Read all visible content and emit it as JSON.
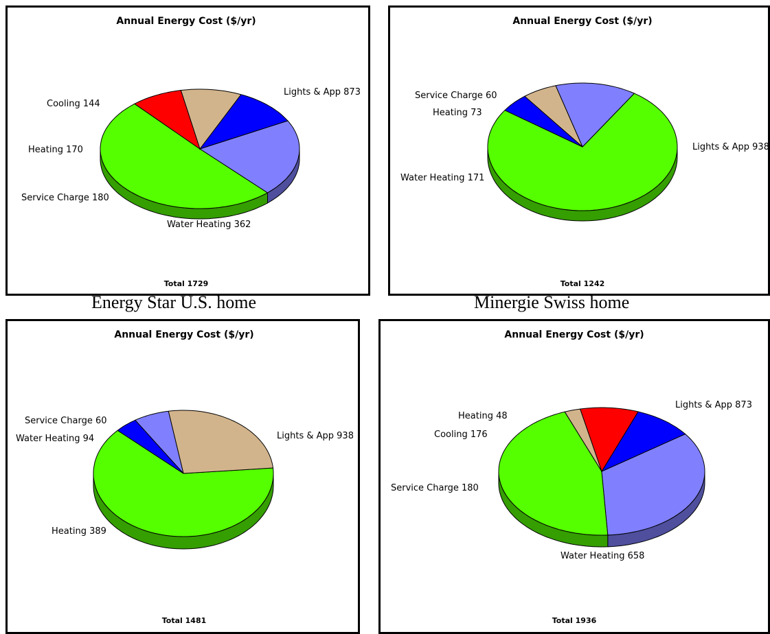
{
  "captions": [
    "Energy Star U.S. home",
    "Minergie Swiss home"
  ],
  "chart_data": [
    {
      "type": "pie",
      "title": "Annual Energy Cost ($/yr)",
      "total_label": "Total 1729",
      "slices": [
        {
          "label": "Lights & App",
          "value": 873,
          "color": "#55ff00"
        },
        {
          "label": "Water Heating",
          "value": 362,
          "color": "#8080ff"
        },
        {
          "label": "Service Charge",
          "value": 180,
          "color": "#0000ff"
        },
        {
          "label": "Heating",
          "value": 170,
          "color": "#d2b48c"
        },
        {
          "label": "Cooling",
          "value": 144,
          "color": "#ff0000"
        }
      ]
    },
    {
      "type": "pie",
      "title": "Annual Energy Cost ($/yr)",
      "total_label": "Total 1242",
      "slices": [
        {
          "label": "Lights & App",
          "value": 938,
          "color": "#55ff00"
        },
        {
          "label": "Water Heating",
          "value": 171,
          "color": "#8080ff"
        },
        {
          "label": "Heating",
          "value": 73,
          "color": "#d2b48c"
        },
        {
          "label": "Service Charge",
          "value": 60,
          "color": "#0000ff"
        }
      ]
    },
    {
      "type": "pie",
      "title": "Annual Energy Cost ($/yr)",
      "total_label": "Total 1481",
      "slices": [
        {
          "label": "Lights & App",
          "value": 938,
          "color": "#55ff00"
        },
        {
          "label": "Heating",
          "value": 389,
          "color": "#d2b48c"
        },
        {
          "label": "Water Heating",
          "value": 94,
          "color": "#8080ff"
        },
        {
          "label": "Service Charge",
          "value": 60,
          "color": "#0000ff"
        }
      ]
    },
    {
      "type": "pie",
      "title": "Annual Energy Cost ($/yr)",
      "total_label": "Total 1936",
      "slices": [
        {
          "label": "Lights & App",
          "value": 873,
          "color": "#55ff00"
        },
        {
          "label": "Water Heating",
          "value": 658,
          "color": "#8080ff"
        },
        {
          "label": "Service Charge",
          "value": 180,
          "color": "#0000ff"
        },
        {
          "label": "Cooling",
          "value": 176,
          "color": "#ff0000"
        },
        {
          "label": "Heating",
          "value": 48,
          "color": "#d2b48c"
        }
      ]
    }
  ]
}
